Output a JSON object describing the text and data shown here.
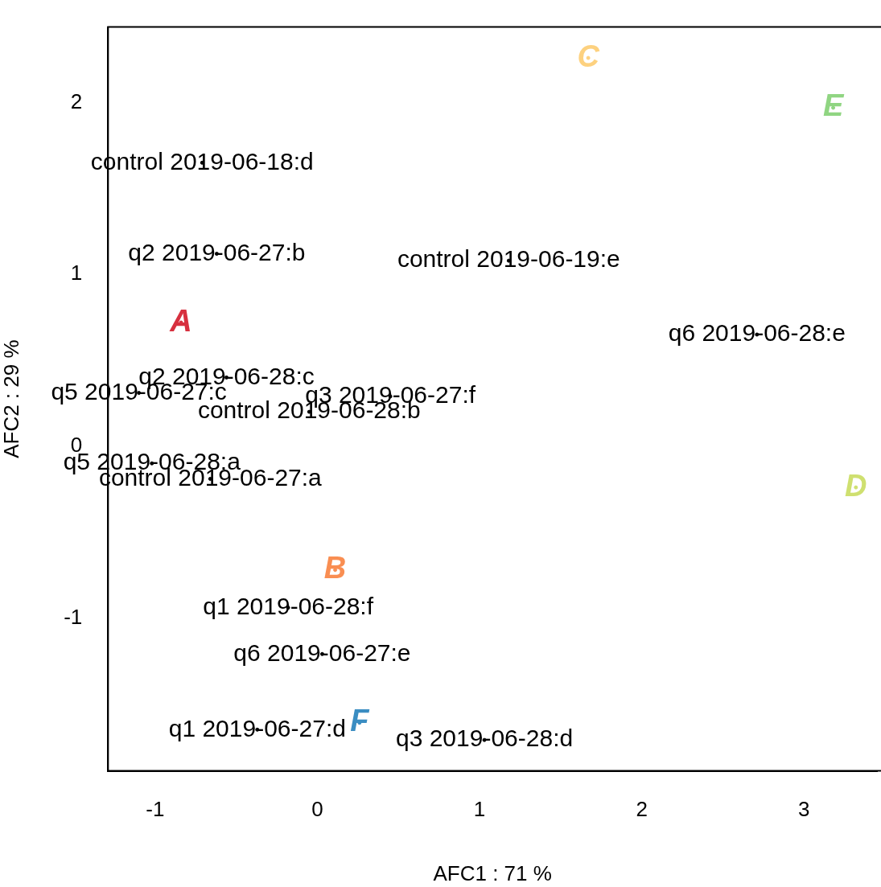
{
  "chart_data": {
    "type": "scatter",
    "xlabel": "AFC1 : 71 %",
    "ylabel": "AFC2 : 29 %",
    "xlim": [
      -1.29,
      3.45
    ],
    "ylim": [
      -1.89,
      2.44
    ],
    "xticks": [
      -1,
      0,
      1,
      2,
      3
    ],
    "yticks": [
      -1,
      0,
      1,
      2
    ],
    "grid": false,
    "legend": false,
    "series": [
      {
        "color": "#000000",
        "x": [
          -0.71,
          -0.62,
          1.18,
          2.71,
          -0.56,
          -1.1,
          0.45,
          -0.05,
          -1.02,
          -0.66,
          -0.18,
          0.03,
          -0.37,
          1.03
        ],
        "values": [
          1.65,
          1.12,
          1.08,
          0.65,
          0.4,
          0.31,
          0.29,
          0.2,
          -0.1,
          -0.19,
          -0.94,
          -1.21,
          -1.65,
          -1.71
        ],
        "value_labels": [
          "control 2019-06-18:d",
          "q2 2019-06-27:b",
          "control 2019-06-19:e",
          "q6 2019-06-28:e",
          "q2 2019-06-28:c",
          "q5 2019-06-27:c",
          "q3 2019-06-27:f",
          "control 2019-06-28:b",
          "q5 2019-06-28:a",
          "control 2019-06-27:a",
          "q1 2019-06-28:f",
          "q6 2019-06-27:e",
          "q1 2019-06-27:d",
          "q3 2019-06-28:d"
        ]
      },
      {
        "colors": [
          "#d7303f",
          "#f98e52",
          "#fdd17f",
          "#cfe070",
          "#90d582",
          "#3a8dc2"
        ],
        "x": [
          -0.84,
          0.11,
          1.67,
          3.32,
          3.18,
          0.26
        ],
        "values": [
          0.72,
          -0.72,
          2.26,
          -0.24,
          1.97,
          -1.61
        ],
        "value_labels": [
          "A",
          "B",
          "C",
          "D",
          "E",
          "F"
        ]
      }
    ]
  }
}
